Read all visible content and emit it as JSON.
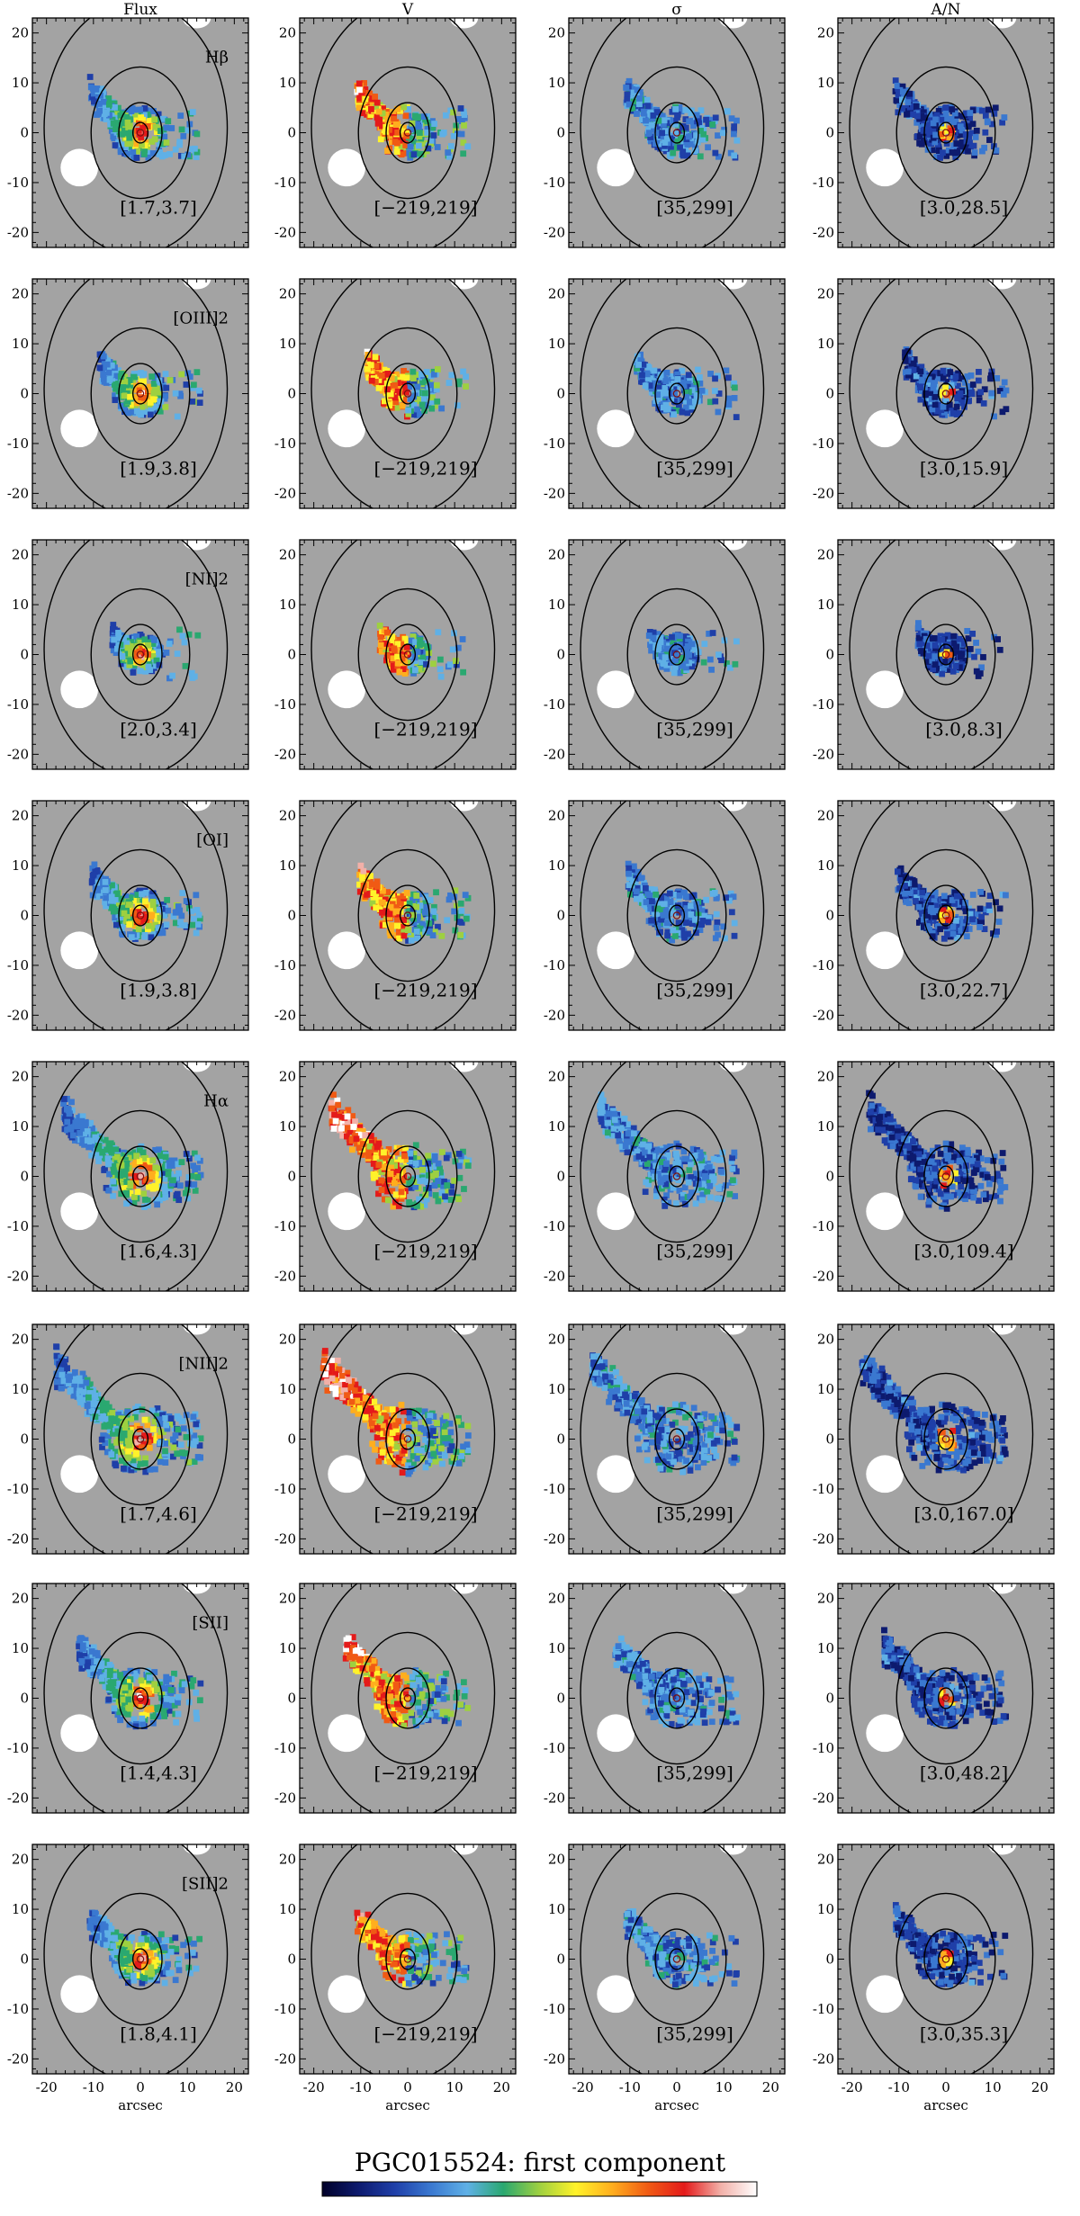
{
  "figure": {
    "title": "PGC015524: first component",
    "column_titles": [
      "Flux",
      "V",
      "σ",
      "A/N"
    ],
    "x_axis_label": "arcsec",
    "colors": {
      "panel_background": "#a3a3a3",
      "masked_region": "#ffffff",
      "contour": "#000000"
    },
    "colormap": [
      "#000028",
      "#0d1a6e",
      "#1f3fa8",
      "#3a78d0",
      "#5fb0e6",
      "#2aa870",
      "#9ed040",
      "#fff22a",
      "#ffae1e",
      "#f05a14",
      "#e41a1a",
      "#f2b0a8",
      "#ffffff"
    ]
  },
  "chart_data": {
    "type": "heatmap",
    "description_layout": "8 rows (emission lines) x 4 columns (Flux, V, sigma, A/N) of 2D spatial maps",
    "xlim": [
      -23,
      23
    ],
    "ylim": [
      -23,
      23
    ],
    "x_ticks": [
      -20,
      -10,
      0,
      10,
      20
    ],
    "y_ticks": [
      -20,
      -10,
      0,
      10,
      20
    ],
    "rows": [
      {
        "line": "Hβ",
        "extent": 0.55,
        "flux_range": "[1.7,3.7]",
        "v_range": "[−219,219]",
        "sigma_range": "[35,299]",
        "an_range": "[3.0,28.5]"
      },
      {
        "line": "[OIII]2",
        "extent": 0.42,
        "flux_range": "[1.9,3.8]",
        "v_range": "[−219,219]",
        "sigma_range": "[35,299]",
        "an_range": "[3.0,15.9]"
      },
      {
        "line": "[NI]2",
        "extent": 0.25,
        "flux_range": "[2.0,3.4]",
        "v_range": "[−219,219]",
        "sigma_range": "[35,299]",
        "an_range": "[3.0,8.3]"
      },
      {
        "line": "[OI]",
        "extent": 0.52,
        "flux_range": "[1.9,3.8]",
        "v_range": "[−219,219]",
        "sigma_range": "[35,299]",
        "an_range": "[3.0,22.7]"
      },
      {
        "line": "Hα",
        "extent": 0.9,
        "flux_range": "[1.6,4.3]",
        "v_range": "[−219,219]",
        "sigma_range": "[35,299]",
        "an_range": "[3.0,109.4]"
      },
      {
        "line": "[NII]2",
        "extent": 1.0,
        "flux_range": "[1.7,4.6]",
        "v_range": "[−219,219]",
        "sigma_range": "[35,299]",
        "an_range": "[3.0,167.0]"
      },
      {
        "line": "[SII]",
        "extent": 0.7,
        "flux_range": "[1.4,4.3]",
        "v_range": "[−219,219]",
        "sigma_range": "[35,299]",
        "an_range": "[3.0,48.2]"
      },
      {
        "line": "[SII]2",
        "extent": 0.55,
        "flux_range": "[1.8,4.1]",
        "v_range": "[−219,219]",
        "sigma_range": "[35,299]",
        "an_range": "[3.0,35.3]"
      }
    ],
    "colorbar": {
      "orientation": "horizontal",
      "position": "bottom"
    }
  }
}
